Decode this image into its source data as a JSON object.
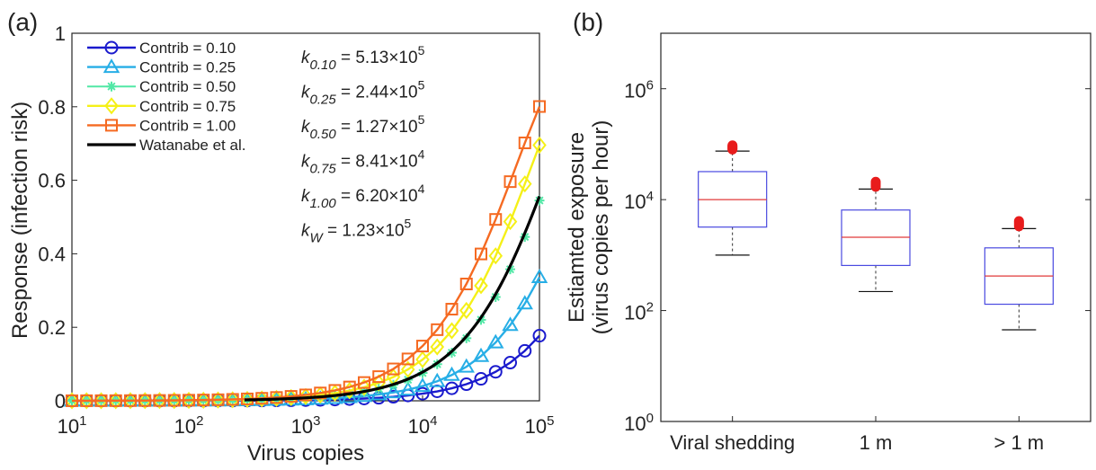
{
  "chart_data": [
    {
      "panel_label": "(a)",
      "type": "line",
      "xlabel": "Virus copies",
      "ylabel": "Response (infection risk)",
      "xscale": "log",
      "xlim": [
        10,
        100000
      ],
      "ylim": [
        0,
        1
      ],
      "x_tick_labels": [
        {
          "base": "10",
          "exp": "1"
        },
        {
          "base": "10",
          "exp": "2"
        },
        {
          "base": "10",
          "exp": "3"
        },
        {
          "base": "10",
          "exp": "4"
        },
        {
          "base": "10",
          "exp": "5"
        }
      ],
      "y_tick_labels": [
        "0",
        "0.2",
        "0.4",
        "0.6",
        "0.8",
        "1"
      ],
      "grid": false,
      "legend_position": "top-left",
      "series": [
        {
          "name": "Contrib = 0.10",
          "k": 513000,
          "marker": "circle",
          "color": "#1a1acd"
        },
        {
          "name": "Contrib = 0.25",
          "k": 244000,
          "marker": "triangle",
          "color": "#27aee6"
        },
        {
          "name": "Contrib = 0.50",
          "k": 127000,
          "marker": "star",
          "color": "#52e8a6"
        },
        {
          "name": "Contrib = 0.75",
          "k": 84100,
          "marker": "diamond",
          "color": "#f5f018"
        },
        {
          "name": "Contrib = 1.00",
          "k": 62000,
          "marker": "square",
          "color": "#f56a22"
        },
        {
          "name": "Watanabe et al.",
          "k": 123000,
          "marker": "none",
          "color": "#000000",
          "x_start": 300
        }
      ],
      "marker_x_points_per_decade": 8,
      "annotations": [
        {
          "sub": "0.10",
          "value": "5.13",
          "exp": "5"
        },
        {
          "sub": "0.25",
          "value": "2.44",
          "exp": "5"
        },
        {
          "sub": "0.50",
          "value": "1.27",
          "exp": "5"
        },
        {
          "sub": "0.75",
          "value": "8.41",
          "exp": "4"
        },
        {
          "sub": "1.00",
          "value": "6.20",
          "exp": "4"
        },
        {
          "sub": "W",
          "value": "1.23",
          "exp": "5"
        }
      ]
    },
    {
      "panel_label": "(b)",
      "type": "box",
      "ylabel_line1": "Estiamted exposure",
      "ylabel_line2": "(virus copies per hour)",
      "yscale": "log",
      "ylim": [
        1,
        10000000
      ],
      "y_tick_labels": [
        {
          "base": "10",
          "exp": "0"
        },
        {
          "base": "10",
          "exp": "2"
        },
        {
          "base": "10",
          "exp": "4"
        },
        {
          "base": "10",
          "exp": "6"
        }
      ],
      "categories": [
        "Viral shedding",
        "1 m",
        "> 1 m"
      ],
      "boxes": [
        {
          "whisker_low": 1000,
          "q1": 3200,
          "median": 10000,
          "q3": 32000,
          "whisker_high": 75000,
          "outliers": [
            80000,
            83000,
            86000,
            89000,
            92000,
            95000
          ]
        },
        {
          "whisker_low": 220,
          "q1": 650,
          "median": 2100,
          "q3": 6500,
          "whisker_high": 15500,
          "outliers": [
            17000,
            18000,
            19000,
            20000,
            21000
          ]
        },
        {
          "whisker_low": 45,
          "q1": 130,
          "median": 420,
          "q3": 1350,
          "whisker_high": 3000,
          "outliers": [
            3300,
            3500,
            3700,
            3900,
            4100
          ]
        }
      ],
      "box_color": "#4a4ae0",
      "median_color": "#e03a3a",
      "outlier_color": "#e81c1c"
    }
  ]
}
